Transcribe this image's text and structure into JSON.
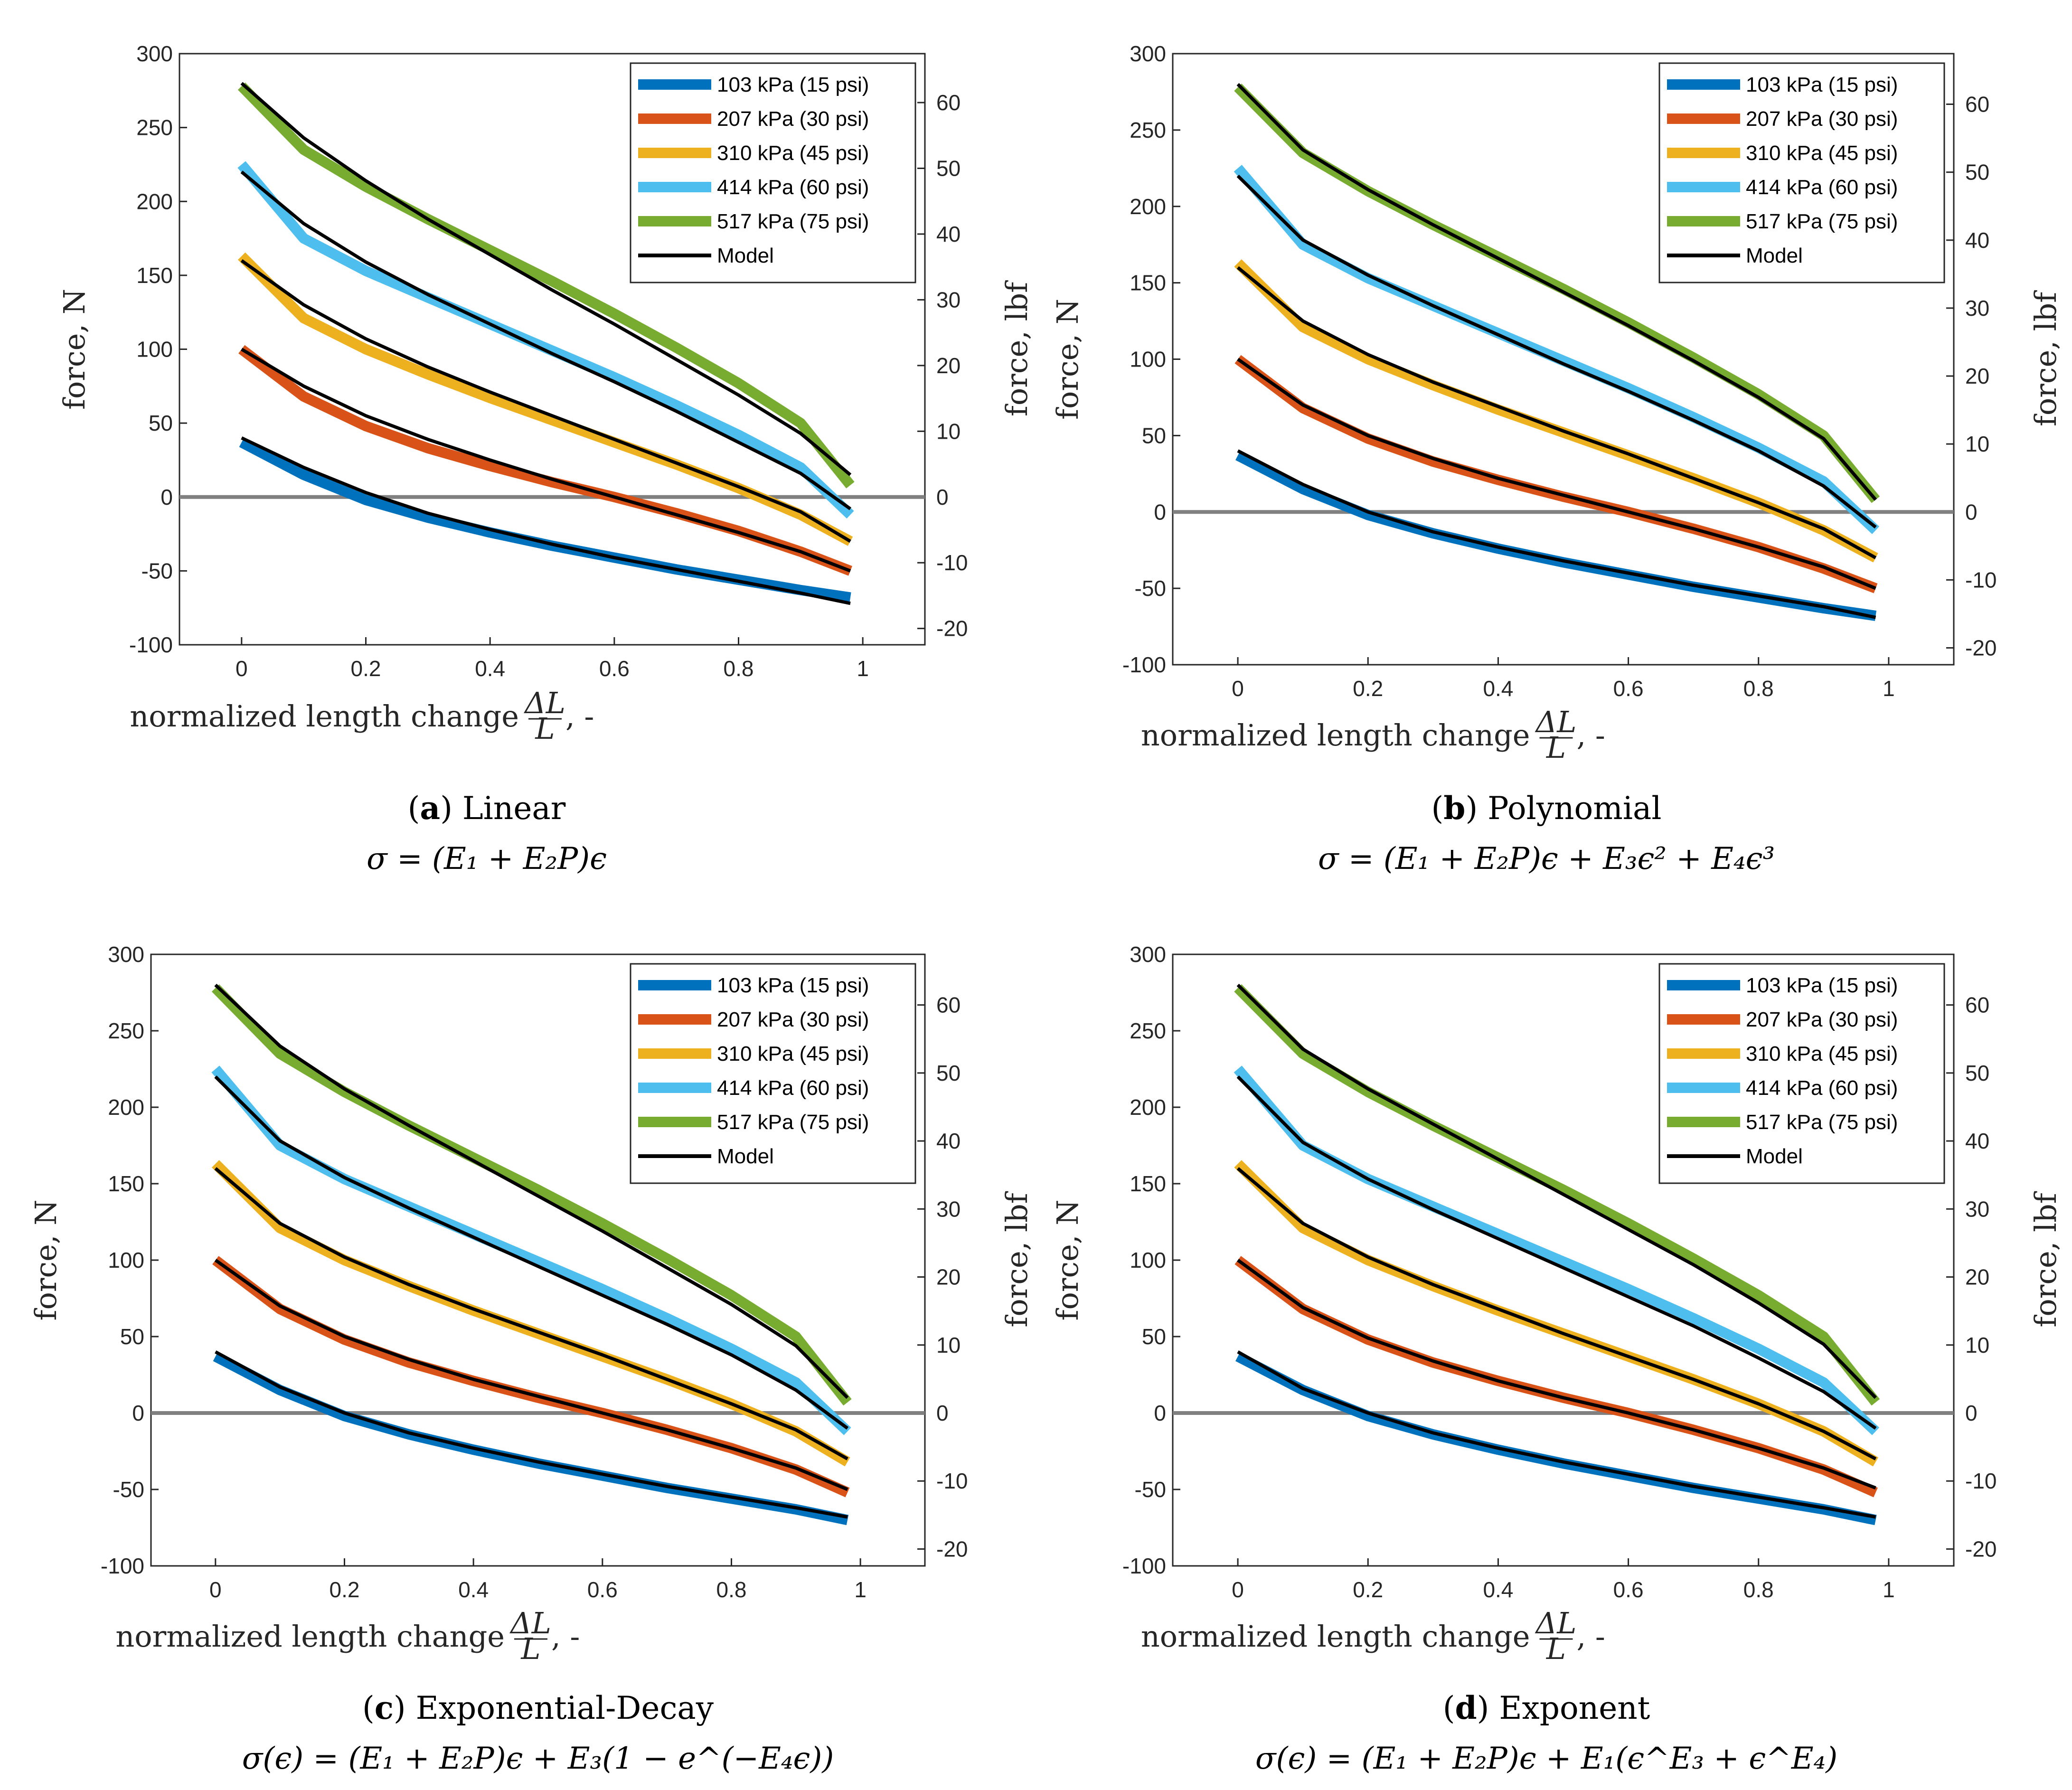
{
  "figure": {
    "colors": {
      "103 kPa (15 psi)": "#0072BD",
      "207 kPa (30 psi)": "#D95319",
      "310 kPa (45 psi)": "#EDB120",
      "414 kPa (60 psi)": "#4DBEEE",
      "517 kPa (75 psi)": "#77AC30",
      "Model": "#000000",
      "zero_line": "#808080"
    }
  },
  "chart_data": [
    {
      "type": "line",
      "xlabel_text": "normalized length change",
      "xlabel_suffix": ", -",
      "frac_num": "ΔL",
      "frac_den": "L",
      "ylabel": "force, N",
      "ylabel_right": "force, lbf",
      "xlim": [
        -0.1,
        1.1
      ],
      "ylim": [
        -100,
        300
      ],
      "xticks": [
        0,
        0.2,
        0.4,
        0.6,
        0.8,
        1
      ],
      "xtick_labels": [
        "0",
        "0.2",
        "0.4",
        "0.6",
        "0.8",
        "1"
      ],
      "yticks": [
        -100,
        -50,
        0,
        50,
        100,
        150,
        200,
        250,
        300
      ],
      "ytick_labels": [
        "-100",
        "-50",
        "0",
        "50",
        "100",
        "150",
        "200",
        "250",
        "300"
      ],
      "yticks_right_lbf": [
        -20,
        -10,
        0,
        10,
        20,
        30,
        40,
        50,
        60
      ],
      "ytick_right_labels": [
        "-20",
        "-10",
        "0",
        "10",
        "20",
        "30",
        "40",
        "50",
        "60"
      ],
      "legend": [
        "103 kPa (15 psi)",
        "207 kPa (30 psi)",
        "310 kPa (45 psi)",
        "414 kPa (60 psi)",
        "517 kPa (75 psi)",
        "Model"
      ],
      "legend_position": "top-right",
      "caption_letter": "a",
      "caption_title": "Linear",
      "caption_equation": "σ = (E₁ + E₂P)ϵ",
      "x": [
        0,
        0.1,
        0.2,
        0.3,
        0.4,
        0.5,
        0.6,
        0.7,
        0.8,
        0.9,
        0.98
      ],
      "series": [
        {
          "name": "103 kPa (15 psi)",
          "values": [
            37,
            15,
            -2,
            -14,
            -24,
            -33,
            -41,
            -49,
            -56,
            -63,
            -68
          ]
        },
        {
          "name": "207 kPa (30 psi)",
          "values": [
            100,
            68,
            48,
            33,
            21,
            10,
            0,
            -11,
            -23,
            -37,
            -50
          ]
        },
        {
          "name": "310 kPa (45 psi)",
          "values": [
            163,
            121,
            100,
            83,
            67,
            52,
            37,
            22,
            6,
            -12,
            -30
          ]
        },
        {
          "name": "414 kPa (60 psi)",
          "values": [
            225,
            175,
            153,
            135,
            117,
            99,
            81,
            62,
            42,
            20,
            -12
          ]
        },
        {
          "name": "517 kPa (75 psi)",
          "values": [
            278,
            235,
            210,
            188,
            167,
            146,
            124,
            101,
            77,
            50,
            8
          ]
        }
      ],
      "model": [
        {
          "name": "Model 103",
          "values": [
            40,
            20,
            3,
            -11,
            -22,
            -32,
            -41,
            -49,
            -57,
            -65,
            -72
          ]
        },
        {
          "name": "Model 207",
          "values": [
            100,
            75,
            55,
            39,
            25,
            12,
            0,
            -12,
            -24,
            -37,
            -50
          ]
        },
        {
          "name": "Model 310",
          "values": [
            160,
            130,
            107,
            88,
            71,
            55,
            39,
            23,
            7,
            -10,
            -30
          ]
        },
        {
          "name": "Model 414",
          "values": [
            220,
            185,
            159,
            137,
            117,
            97,
            78,
            58,
            37,
            16,
            -8
          ]
        },
        {
          "name": "Model 517",
          "values": [
            280,
            243,
            214,
            188,
            164,
            140,
            117,
            93,
            69,
            43,
            15
          ]
        }
      ]
    },
    {
      "type": "line",
      "xlabel_text": "normalized length change",
      "xlabel_suffix": ", -",
      "frac_num": "ΔL",
      "frac_den": "L",
      "ylabel": "force, N",
      "ylabel_right": "force, lbf",
      "xlim": [
        -0.1,
        1.1
      ],
      "ylim": [
        -100,
        300
      ],
      "xticks": [
        0,
        0.2,
        0.4,
        0.6,
        0.8,
        1
      ],
      "xtick_labels": [
        "0",
        "0.2",
        "0.4",
        "0.6",
        "0.8",
        "1"
      ],
      "yticks": [
        -100,
        -50,
        0,
        50,
        100,
        150,
        200,
        250,
        300
      ],
      "ytick_labels": [
        "-100",
        "-50",
        "0",
        "50",
        "100",
        "150",
        "200",
        "250",
        "300"
      ],
      "yticks_right_lbf": [
        -20,
        -10,
        0,
        10,
        20,
        30,
        40,
        50,
        60
      ],
      "ytick_right_labels": [
        "-20",
        "-10",
        "0",
        "10",
        "20",
        "30",
        "40",
        "50",
        "60"
      ],
      "legend": [
        "103 kPa (15 psi)",
        "207 kPa (30 psi)",
        "310 kPa (45 psi)",
        "414 kPa (60 psi)",
        "517 kPa (75 psi)",
        "Model"
      ],
      "legend_position": "top-right",
      "caption_letter": "b",
      "caption_title": "Polynomial",
      "caption_equation": "σ = (E₁ + E₂P)ϵ + E₃ϵ² + E₄ϵ³",
      "x": [
        0,
        0.1,
        0.2,
        0.3,
        0.4,
        0.5,
        0.6,
        0.7,
        0.8,
        0.9,
        0.98
      ],
      "series": [
        {
          "name": "103 kPa (15 psi)",
          "values": [
            37,
            15,
            -2,
            -14,
            -24,
            -33,
            -41,
            -49,
            -56,
            -63,
            -68
          ]
        },
        {
          "name": "207 kPa (30 psi)",
          "values": [
            100,
            68,
            48,
            33,
            21,
            10,
            0,
            -11,
            -23,
            -37,
            -50
          ]
        },
        {
          "name": "310 kPa (45 psi)",
          "values": [
            163,
            121,
            100,
            83,
            67,
            52,
            37,
            22,
            6,
            -12,
            -30
          ]
        },
        {
          "name": "414 kPa (60 psi)",
          "values": [
            225,
            175,
            153,
            135,
            117,
            99,
            81,
            62,
            42,
            20,
            -12
          ]
        },
        {
          "name": "517 kPa (75 psi)",
          "values": [
            278,
            235,
            210,
            188,
            167,
            146,
            124,
            101,
            77,
            50,
            8
          ]
        }
      ],
      "model": [
        {
          "name": "Model 103",
          "values": [
            40,
            18,
            0,
            -13,
            -23,
            -32,
            -40,
            -48,
            -55,
            -62,
            -69
          ]
        },
        {
          "name": "Model 207",
          "values": [
            100,
            70,
            50,
            35,
            22,
            11,
            0,
            -11,
            -23,
            -36,
            -50
          ]
        },
        {
          "name": "Model 310",
          "values": [
            160,
            125,
            103,
            85,
            69,
            53,
            38,
            22,
            6,
            -11,
            -30
          ]
        },
        {
          "name": "Model 414",
          "values": [
            220,
            178,
            155,
            135,
            116,
            97,
            79,
            60,
            40,
            17,
            -10
          ]
        },
        {
          "name": "Model 517",
          "values": [
            280,
            237,
            211,
            188,
            166,
            144,
            122,
            99,
            75,
            48,
            8
          ]
        }
      ]
    },
    {
      "type": "line",
      "xlabel_text": "normalized length change",
      "xlabel_suffix": ", -",
      "frac_num": "ΔL",
      "frac_den": "L",
      "ylabel": "force, N",
      "ylabel_right": "force, lbf",
      "xlim": [
        -0.1,
        1.1
      ],
      "ylim": [
        -100,
        300
      ],
      "xticks": [
        0,
        0.2,
        0.4,
        0.6,
        0.8,
        1
      ],
      "xtick_labels": [
        "0",
        "0.2",
        "0.4",
        "0.6",
        "0.8",
        "1"
      ],
      "yticks": [
        -100,
        -50,
        0,
        50,
        100,
        150,
        200,
        250,
        300
      ],
      "ytick_labels": [
        "-100",
        "-50",
        "0",
        "50",
        "100",
        "150",
        "200",
        "250",
        "300"
      ],
      "yticks_right_lbf": [
        -20,
        -10,
        0,
        10,
        20,
        30,
        40,
        50,
        60
      ],
      "ytick_right_labels": [
        "-20",
        "-10",
        "0",
        "10",
        "20",
        "30",
        "40",
        "50",
        "60"
      ],
      "legend": [
        "103 kPa (15 psi)",
        "207 kPa (30 psi)",
        "310 kPa (45 psi)",
        "414 kPa (60 psi)",
        "517 kPa (75 psi)",
        "Model"
      ],
      "legend_position": "top-right",
      "caption_letter": "c",
      "caption_title": "Exponential-Decay",
      "caption_equation": "σ(ϵ) = (E₁ + E₂P)ϵ + E₃(1 − e^(−E₄ϵ))",
      "x": [
        0,
        0.1,
        0.2,
        0.3,
        0.4,
        0.5,
        0.6,
        0.7,
        0.8,
        0.9,
        0.98
      ],
      "series": [
        {
          "name": "103 kPa (15 psi)",
          "values": [
            37,
            15,
            -2,
            -14,
            -24,
            -33,
            -41,
            -49,
            -56,
            -63,
            -70
          ]
        },
        {
          "name": "207 kPa (30 psi)",
          "values": [
            100,
            68,
            48,
            33,
            21,
            10,
            0,
            -11,
            -23,
            -37,
            -52
          ]
        },
        {
          "name": "310 kPa (45 psi)",
          "values": [
            163,
            121,
            100,
            83,
            67,
            52,
            37,
            22,
            6,
            -12,
            -32
          ]
        },
        {
          "name": "414 kPa (60 psi)",
          "values": [
            225,
            175,
            153,
            135,
            117,
            99,
            81,
            62,
            42,
            20,
            -12
          ]
        },
        {
          "name": "517 kPa (75 psi)",
          "values": [
            278,
            235,
            210,
            188,
            167,
            146,
            124,
            101,
            77,
            50,
            7
          ]
        }
      ],
      "model": [
        {
          "name": "Model 103",
          "values": [
            40,
            17,
            0,
            -13,
            -23,
            -32,
            -40,
            -48,
            -55,
            -62,
            -68
          ]
        },
        {
          "name": "Model 207",
          "values": [
            100,
            70,
            50,
            35,
            22,
            11,
            0,
            -11,
            -23,
            -36,
            -50
          ]
        },
        {
          "name": "Model 310",
          "values": [
            160,
            124,
            102,
            84,
            68,
            53,
            38,
            22,
            6,
            -11,
            -30
          ]
        },
        {
          "name": "Model 414",
          "values": [
            220,
            178,
            154,
            134,
            115,
            96,
            77,
            58,
            38,
            15,
            -10
          ]
        },
        {
          "name": "Model 517",
          "values": [
            280,
            240,
            212,
            188,
            165,
            142,
            119,
            95,
            71,
            44,
            10
          ]
        }
      ]
    },
    {
      "type": "line",
      "xlabel_text": "normalized length change",
      "xlabel_suffix": ", -",
      "frac_num": "ΔL",
      "frac_den": "L",
      "ylabel": "force, N",
      "ylabel_right": "force, lbf",
      "xlim": [
        -0.1,
        1.1
      ],
      "ylim": [
        -100,
        300
      ],
      "xticks": [
        0,
        0.2,
        0.4,
        0.6,
        0.8,
        1
      ],
      "xtick_labels": [
        "0",
        "0.2",
        "0.4",
        "0.6",
        "0.8",
        "1"
      ],
      "yticks": [
        -100,
        -50,
        0,
        50,
        100,
        150,
        200,
        250,
        300
      ],
      "ytick_labels": [
        "-100",
        "-50",
        "0",
        "50",
        "100",
        "150",
        "200",
        "250",
        "300"
      ],
      "yticks_right_lbf": [
        -20,
        -10,
        0,
        10,
        20,
        30,
        40,
        50,
        60
      ],
      "ytick_right_labels": [
        "-20",
        "-10",
        "0",
        "10",
        "20",
        "30",
        "40",
        "50",
        "60"
      ],
      "legend": [
        "103 kPa (15 psi)",
        "207 kPa (30 psi)",
        "310 kPa (45 psi)",
        "414 kPa (60 psi)",
        "517 kPa (75 psi)",
        "Model"
      ],
      "legend_position": "top-right",
      "caption_letter": "d",
      "caption_title": "Exponent",
      "caption_equation": "σ(ϵ) = (E₁ + E₂P)ϵ + E₁(ϵ^E₃ + ϵ^E₄)",
      "x": [
        0,
        0.1,
        0.2,
        0.3,
        0.4,
        0.5,
        0.6,
        0.7,
        0.8,
        0.9,
        0.98
      ],
      "series": [
        {
          "name": "103 kPa (15 psi)",
          "values": [
            37,
            15,
            -2,
            -14,
            -24,
            -33,
            -41,
            -49,
            -56,
            -63,
            -70
          ]
        },
        {
          "name": "207 kPa (30 psi)",
          "values": [
            100,
            68,
            48,
            33,
            21,
            10,
            0,
            -11,
            -23,
            -37,
            -52
          ]
        },
        {
          "name": "310 kPa (45 psi)",
          "values": [
            163,
            121,
            100,
            83,
            67,
            52,
            37,
            22,
            6,
            -12,
            -32
          ]
        },
        {
          "name": "414 kPa (60 psi)",
          "values": [
            225,
            175,
            153,
            135,
            117,
            99,
            81,
            62,
            42,
            20,
            -12
          ]
        },
        {
          "name": "517 kPa (75 psi)",
          "values": [
            278,
            235,
            210,
            188,
            167,
            146,
            124,
            101,
            77,
            50,
            7
          ]
        }
      ],
      "model": [
        {
          "name": "Model 103",
          "values": [
            40,
            16,
            0,
            -13,
            -23,
            -32,
            -40,
            -48,
            -55,
            -62,
            -68
          ]
        },
        {
          "name": "Model 207",
          "values": [
            100,
            69,
            49,
            34,
            21,
            10,
            0,
            -11,
            -23,
            -36,
            -49
          ]
        },
        {
          "name": "Model 310",
          "values": [
            160,
            124,
            102,
            84,
            68,
            52,
            37,
            22,
            6,
            -12,
            -30
          ]
        },
        {
          "name": "Model 414",
          "values": [
            220,
            177,
            153,
            133,
            114,
            95,
            76,
            57,
            36,
            14,
            -10
          ]
        },
        {
          "name": "Model 517",
          "values": [
            280,
            238,
            212,
            189,
            166,
            143,
            120,
            97,
            72,
            45,
            10
          ]
        }
      ]
    }
  ]
}
